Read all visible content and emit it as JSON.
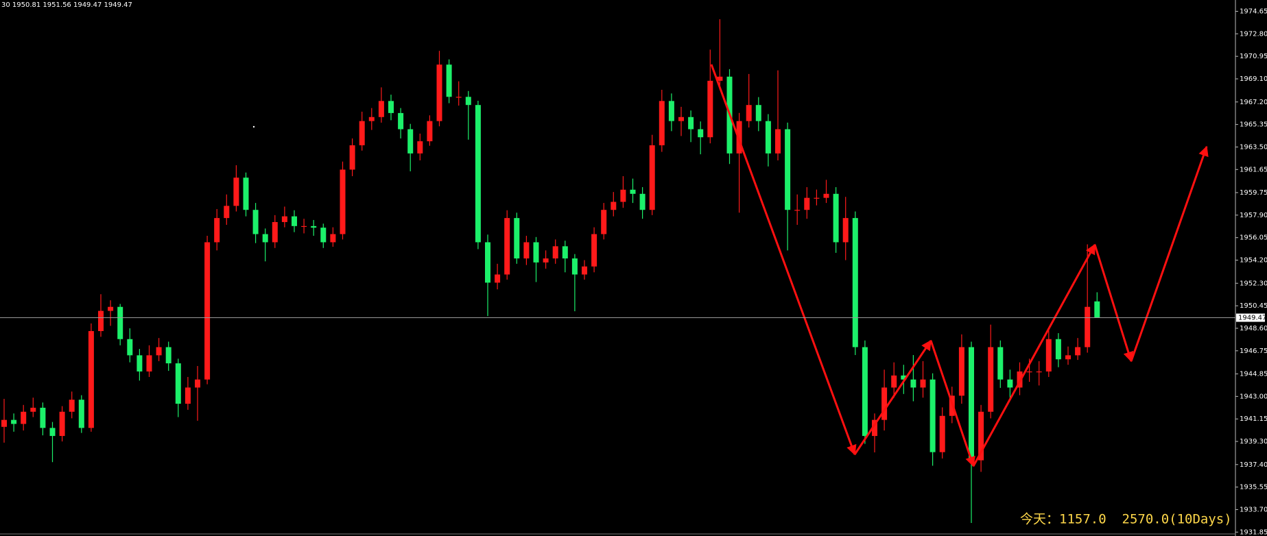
{
  "chart_data": {
    "type": "candlestick",
    "header": "30  1950.81 1951.56 1949.47 1949.47",
    "footer": "今天：1157.0  2570.0(10Days)",
    "up_color": "#ff1a1a",
    "down_color": "#1cf06a",
    "price_line_color": "#9a9a9a",
    "ylim": [
      1931.85,
      1974.65
    ],
    "yticks": [
      1974.65,
      {
        "value": 1972.8,
        "label": "1972.80"
      },
      1970.95,
      {
        "value": 1969.1,
        "label": "1969.10"
      },
      {
        "value": 1967.2,
        "label": "1967.20"
      },
      1965.35,
      {
        "value": 1963.5,
        "label": "1963.50"
      },
      1961.65,
      1959.75,
      {
        "value": 1957.9,
        "label": "1957.90"
      },
      1956.05,
      {
        "value": 1954.2,
        "label": "1954.20"
      },
      {
        "value": 1952.3,
        "label": "1952.30"
      },
      1950.45,
      {
        "value": 1948.6,
        "label": "1948.60"
      },
      1946.75,
      1944.85,
      {
        "value": 1943,
        "label": "1943.00"
      },
      1941.15,
      {
        "value": 1939.3,
        "label": "1939.30"
      },
      {
        "value": 1937.4,
        "label": "1937.40"
      },
      1935.55,
      {
        "value": 1933.7,
        "label": "1933.70"
      },
      1931.85
    ],
    "open": [
      1940.5,
      1941.07,
      1940.74,
      1941.74,
      1942.07,
      1940.41,
      1939.75,
      1941.74,
      1942.73,
      1940.41,
      1948.37,
      1950.03,
      1950.36,
      1947.71,
      1946.38,
      1945.05,
      1946.38,
      1947.05,
      1945.72,
      1942.4,
      1943.73,
      1944.39,
      1955.67,
      1957.66,
      1958.66,
      1960.98,
      1958.33,
      1956.34,
      1955.67,
      1957.33,
      1957.8,
      1957.0,
      1957.0,
      1956.87,
      1955.67,
      1956.34,
      1961.64,
      1963.64,
      1965.63,
      1965.96,
      1967.28,
      1966.29,
      1964.96,
      1962.97,
      1963.97,
      1965.63,
      1970.27,
      1967.62,
      1967.62,
      1966.95,
      1955.67,
      1952.35,
      1953.02,
      1957.66,
      1954.34,
      1955.67,
      1954.01,
      1954.34,
      1955.34,
      1954.34,
      1953.02,
      1953.68,
      1956.34,
      1958.33,
      1958.99,
      1959.99,
      1959.65,
      1958.33,
      1963.64,
      1967.28,
      1965.63,
      1965.96,
      1964.96,
      1964.3,
      1968.94,
      1969.28,
      1962.97,
      1965.63,
      1966.95,
      1965.63,
      1962.97,
      1964.96,
      1958.33,
      1958.33,
      1959.32,
      1959.32,
      1959.65,
      1955.67,
      1957.66,
      1947.05,
      1939.75,
      1941.07,
      1943.73,
      1944.72,
      1944.39,
      1943.73,
      1944.39,
      1938.42,
      1941.4,
      1943.06,
      1947.05,
      1937.75,
      1941.74,
      1947.05,
      1944.39,
      1943.73,
      1945.05,
      1945.05,
      1945.05,
      1947.71,
      1946.05,
      1946.38,
      1947.05,
      1950.81
    ],
    "high": [
      1942.8,
      1941.6,
      1942.3,
      1942.9,
      1942.5,
      1940.9,
      1942.2,
      1943.4,
      1943.1,
      1949.0,
      1951.4,
      1950.9,
      1950.6,
      1948.6,
      1946.9,
      1947.2,
      1947.8,
      1947.5,
      1946.1,
      1944.6,
      1945.5,
      1956.2,
      1958.4,
      1959.6,
      1962.0,
      1961.4,
      1958.9,
      1956.8,
      1957.9,
      1958.6,
      1958.3,
      1957.6,
      1957.5,
      1957.2,
      1956.9,
      1962.3,
      1964.2,
      1966.4,
      1966.7,
      1968.4,
      1967.8,
      1966.7,
      1965.4,
      1964.6,
      1966.1,
      1971.4,
      1970.7,
      1968.9,
      1968.1,
      1967.3,
      1956.3,
      1953.9,
      1958.3,
      1958.1,
      1956.2,
      1956.1,
      1955.0,
      1955.9,
      1955.8,
      1954.7,
      1954.2,
      1956.9,
      1958.9,
      1959.8,
      1961.1,
      1960.9,
      1960.2,
      1964.5,
      1968.2,
      1967.9,
      1966.8,
      1966.5,
      1965.6,
      1971.5,
      1974.0,
      1969.9,
      1966.3,
      1969.5,
      1967.6,
      1966.2,
      1969.8,
      1965.5,
      1959.6,
      1960.2,
      1960.0,
      1960.8,
      1960.2,
      1959.4,
      1958.2,
      1947.6,
      1941.6,
      1945.2,
      1945.8,
      1945.6,
      1946.4,
      1945.9,
      1944.9,
      1942.1,
      1943.8,
      1948.1,
      1947.5,
      1942.3,
      1948.9,
      1947.6,
      1945.2,
      1945.8,
      1946.1,
      1945.9,
      1948.6,
      1948.2,
      1947.1,
      1947.8,
      1955.5,
      1951.56
    ],
    "low": [
      1939.2,
      1940.1,
      1940.2,
      1941.3,
      1939.8,
      1937.6,
      1939.3,
      1941.2,
      1940.0,
      1940.1,
      1947.9,
      1948.8,
      1947.2,
      1945.8,
      1944.3,
      1944.6,
      1945.9,
      1945.1,
      1941.3,
      1941.9,
      1941.0,
      1944.0,
      1955.0,
      1957.1,
      1958.2,
      1957.8,
      1955.6,
      1954.1,
      1955.2,
      1956.9,
      1956.5,
      1956.4,
      1956.2,
      1955.2,
      1955.3,
      1955.9,
      1961.1,
      1963.2,
      1964.9,
      1965.5,
      1965.7,
      1964.2,
      1961.5,
      1962.4,
      1963.6,
      1965.2,
      1967.1,
      1966.9,
      1964.1,
      1955.1,
      1949.6,
      1951.8,
      1952.6,
      1953.9,
      1953.8,
      1952.4,
      1953.5,
      1953.9,
      1953.2,
      1950.0,
      1952.6,
      1953.2,
      1955.9,
      1957.8,
      1958.5,
      1958.9,
      1957.6,
      1957.9,
      1963.1,
      1964.8,
      1964.4,
      1963.9,
      1962.9,
      1963.8,
      1968.2,
      1962.1,
      1958.1,
      1965.1,
      1964.8,
      1961.9,
      1962.4,
      1955.0,
      1957.1,
      1957.6,
      1958.7,
      1958.9,
      1954.8,
      1954.2,
      1946.4,
      1939.1,
      1938.4,
      1940.2,
      1942.9,
      1943.2,
      1942.6,
      1942.9,
      1937.3,
      1937.9,
      1940.8,
      1942.4,
      1932.6,
      1936.8,
      1941.2,
      1943.7,
      1942.8,
      1943.1,
      1944.2,
      1943.9,
      1944.6,
      1945.4,
      1945.6,
      1946.0,
      1946.6,
      1949.47
    ],
    "close": [
      1941.07,
      1940.74,
      1941.74,
      1942.07,
      1940.41,
      1939.75,
      1941.74,
      1942.73,
      1940.41,
      1948.37,
      1950.03,
      1950.36,
      1947.71,
      1946.38,
      1945.05,
      1946.38,
      1947.05,
      1945.72,
      1942.4,
      1943.73,
      1944.39,
      1955.67,
      1957.66,
      1958.66,
      1960.98,
      1958.33,
      1956.34,
      1955.67,
      1957.33,
      1957.8,
      1957.0,
      1957.0,
      1956.87,
      1955.67,
      1956.34,
      1961.64,
      1963.64,
      1965.63,
      1965.96,
      1967.28,
      1966.29,
      1964.96,
      1962.97,
      1963.97,
      1965.63,
      1970.27,
      1967.62,
      1967.62,
      1966.95,
      1955.67,
      1952.35,
      1953.02,
      1957.66,
      1954.34,
      1955.67,
      1954.01,
      1954.34,
      1955.34,
      1954.34,
      1953.02,
      1953.68,
      1956.34,
      1958.33,
      1958.99,
      1959.99,
      1959.65,
      1958.33,
      1963.64,
      1967.28,
      1965.63,
      1965.96,
      1964.96,
      1964.3,
      1968.94,
      1969.28,
      1962.97,
      1965.63,
      1966.95,
      1965.63,
      1962.97,
      1964.96,
      1958.33,
      1958.33,
      1959.32,
      1959.32,
      1959.65,
      1955.67,
      1957.66,
      1947.05,
      1939.75,
      1941.07,
      1943.73,
      1944.72,
      1944.39,
      1943.73,
      1944.39,
      1938.42,
      1941.4,
      1943.06,
      1947.05,
      1937.75,
      1941.74,
      1947.05,
      1944.39,
      1943.73,
      1945.05,
      1945.05,
      1945.05,
      1947.71,
      1946.05,
      1946.38,
      1947.05,
      1950.36,
      1949.47
    ]
  }
}
